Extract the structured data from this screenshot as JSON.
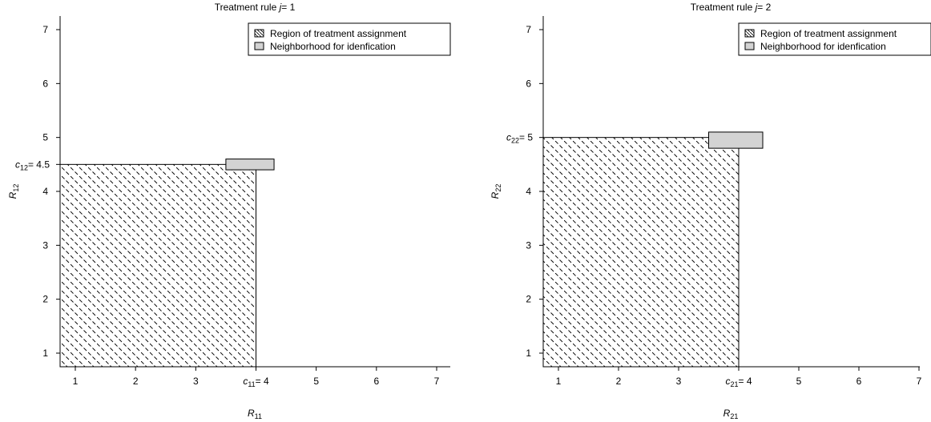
{
  "chart_data": [
    {
      "type": "area",
      "title": "Treatment rule j= 1",
      "title_parts": {
        "prefix": "Treatment rule ",
        "var": "j",
        "suffix": "= 1"
      },
      "xlabel": {
        "main": "R",
        "sub": "11"
      },
      "ylabel": {
        "main": "R",
        "sub": "12"
      },
      "xlim": [
        0.8,
        7.2
      ],
      "ylim": [
        0.8,
        7.3
      ],
      "x_ticks": [
        1,
        2,
        3,
        5,
        6,
        7
      ],
      "y_ticks": [
        1,
        2,
        3,
        4,
        5,
        6,
        7
      ],
      "cutoff_x": {
        "var": "c",
        "sub": "11",
        "label": "= 4",
        "value": 4
      },
      "cutoff_y": {
        "var": "c",
        "sub": "12",
        "label": "= 4.5",
        "value": 4.5
      },
      "regions": {
        "treatment_assignment": {
          "x": [
            0.8,
            4
          ],
          "y": [
            0.8,
            4.5
          ],
          "fill": "hatched"
        },
        "neighborhood": {
          "x": [
            3.5,
            4.3
          ],
          "y": [
            4.4,
            4.6
          ],
          "fill": "#d3d3d3"
        }
      },
      "legend": {
        "position": "top-right",
        "entries": [
          {
            "label": "Region of treatment assignment",
            "style": "hatched"
          },
          {
            "label": "Neighborhood for idenfication",
            "style": "gray"
          }
        ]
      }
    },
    {
      "type": "area",
      "title": "Treatment rule j= 2",
      "title_parts": {
        "prefix": "Treatment rule ",
        "var": "j",
        "suffix": "= 2"
      },
      "xlabel": {
        "main": "R",
        "sub": "21"
      },
      "ylabel": {
        "main": "R",
        "sub": "22"
      },
      "xlim": [
        0.8,
        7.2
      ],
      "ylim": [
        0.8,
        7.3
      ],
      "x_ticks": [
        1,
        2,
        3,
        5,
        6,
        7
      ],
      "y_ticks": [
        1,
        2,
        3,
        4,
        6,
        7
      ],
      "cutoff_x": {
        "var": "c",
        "sub": "21",
        "label": "= 4",
        "value": 4
      },
      "cutoff_y": {
        "var": "c",
        "sub": "22",
        "label": "= 5",
        "value": 5
      },
      "regions": {
        "treatment_assignment": {
          "x": [
            0.8,
            4
          ],
          "y": [
            0.8,
            5
          ],
          "fill": "hatched"
        },
        "neighborhood": {
          "x": [
            3.5,
            4.4
          ],
          "y": [
            4.8,
            5.1
          ],
          "fill": "#d3d3d3"
        }
      },
      "legend": {
        "position": "top-right",
        "entries": [
          {
            "label": "Region of treatment assignment",
            "style": "hatched"
          },
          {
            "label": "Neighborhood for idenfication",
            "style": "gray"
          }
        ]
      }
    }
  ]
}
